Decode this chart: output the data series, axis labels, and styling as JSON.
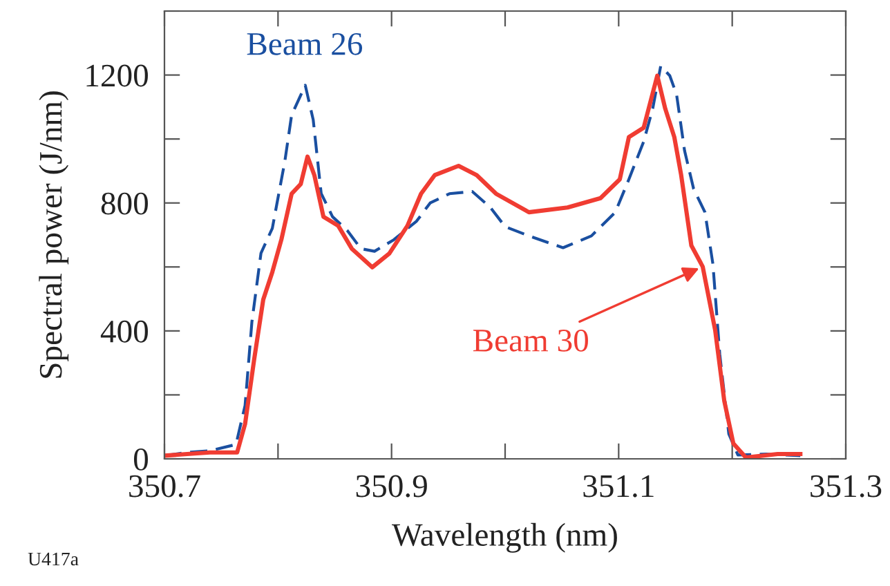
{
  "chart_data": {
    "type": "line",
    "xlabel": "Wavelength (nm)",
    "ylabel": "Spectral power (J/nm)",
    "xlim": [
      350.7,
      351.3
    ],
    "ylim": [
      0,
      1400
    ],
    "xticks": [
      350.7,
      {
        "value": 350.8,
        "label": null
      },
      350.9,
      {
        "value": 351.0,
        "label": null
      },
      351.1,
      {
        "value": 351.2,
        "label": null
      },
      351.3
    ],
    "yticks": [
      0,
      {
        "value": 200,
        "label": null
      },
      400,
      {
        "value": 600,
        "label": null
      },
      800,
      {
        "value": 1000,
        "label": null
      },
      1200,
      {
        "value": 1400,
        "label": null
      }
    ],
    "grid": false,
    "legend": false,
    "series": [
      {
        "name": "Beam 26",
        "color": "#1a4fa0",
        "line_style": "dashed",
        "x": [
          350.7,
          350.72,
          350.74,
          350.763,
          350.771,
          350.777,
          350.785,
          350.795,
          350.806,
          350.812,
          350.824,
          350.831,
          350.838,
          350.848,
          350.861,
          350.873,
          350.885,
          350.902,
          350.922,
          350.934,
          350.951,
          350.971,
          350.987,
          351.0,
          351.021,
          351.051,
          351.076,
          351.097,
          351.109,
          351.122,
          351.13,
          351.137,
          351.145,
          351.151,
          351.158,
          351.166,
          351.176,
          351.183,
          351.189,
          351.197,
          351.205,
          351.23,
          351.26
        ],
        "values": [
          10,
          20,
          25,
          45,
          167,
          428,
          643,
          721,
          930,
          1075,
          1168,
          1060,
          830,
          757,
          714,
          657,
          649,
          685,
          743,
          800,
          829,
          836,
          786,
          726,
          697,
          660,
          697,
          771,
          874,
          992,
          1095,
          1228,
          1198,
          1139,
          964,
          844,
          771,
          609,
          328,
          78,
          12,
          15,
          10
        ]
      },
      {
        "color": "#f03c32",
        "line_style": "solid",
        "x": [
          350.7,
          350.72,
          350.74,
          350.764,
          350.771,
          350.779,
          350.787,
          350.795,
          350.803,
          350.812,
          350.82,
          350.826,
          350.832,
          350.84,
          350.853,
          350.865,
          350.883,
          350.898,
          350.914,
          350.926,
          350.938,
          350.959,
          350.975,
          350.992,
          351.021,
          351.055,
          351.084,
          351.101,
          351.109,
          351.122,
          351.134,
          351.141,
          351.149,
          351.155,
          351.164,
          351.174,
          351.185,
          351.193,
          351.201,
          351.212,
          351.24,
          351.26
        ],
        "values": [
          10,
          15,
          20,
          20,
          109,
          311,
          498,
          584,
          686,
          829,
          859,
          945,
          887,
          757,
          729,
          657,
          599,
          642,
          729,
          829,
          887,
          916,
          887,
          829,
          771,
          786,
          815,
          874,
          1006,
          1035,
          1198,
          1095,
          1006,
          888,
          667,
          601,
          402,
          181,
          48,
          4,
          15,
          15
        ]
      }
    ],
    "annotations": [
      {
        "text": "Beam 30",
        "x": 351.174,
        "y": 601
      },
      "U417a"
    ]
  }
}
